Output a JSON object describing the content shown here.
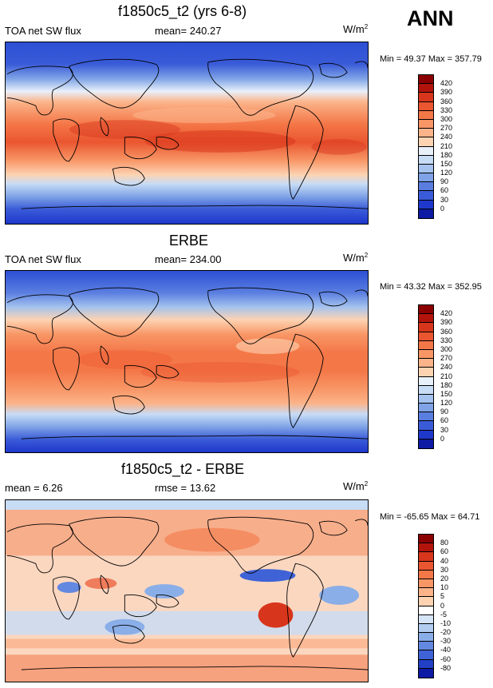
{
  "header": {
    "season": "ANN"
  },
  "panels": [
    {
      "title": "f1850c5_t2 (yrs 6-8)",
      "left_label": "TOA net SW flux",
      "center_label": "mean= 240.27",
      "unit_base": "W/m",
      "unit_exp": "2",
      "minmax": "Min =  49.37 Max = 357.79",
      "colorbar": {
        "labels": [
          "420",
          "390",
          "360",
          "330",
          "300",
          "270",
          "240",
          "210",
          "180",
          "150",
          "120",
          "90",
          "60",
          "30",
          "0"
        ],
        "colors": [
          "#8b0000",
          "#b2140c",
          "#d8361c",
          "#ea5630",
          "#f47748",
          "#f89666",
          "#fbb389",
          "#fdd3b2",
          "#e8f0fa",
          "#c7dcf5",
          "#a5c3ee",
          "#7fa3e6",
          "#5a7ee0",
          "#3a5bd8",
          "#1f38cc",
          "#0d1aa3"
        ]
      },
      "map": {
        "name": "model",
        "field": "toa_net_sw_model"
      }
    },
    {
      "title": "ERBE",
      "left_label": "TOA net SW flux",
      "center_label": "mean= 234.00",
      "unit_base": "W/m",
      "unit_exp": "2",
      "minmax": "Min =  43.32 Max = 352.95",
      "colorbar": {
        "labels": [
          "420",
          "390",
          "360",
          "330",
          "300",
          "270",
          "240",
          "210",
          "180",
          "150",
          "120",
          "90",
          "60",
          "30",
          "0"
        ],
        "colors": [
          "#8b0000",
          "#b2140c",
          "#d8361c",
          "#ea5630",
          "#f47748",
          "#f89666",
          "#fbb389",
          "#fdd3b2",
          "#e8f0fa",
          "#c7dcf5",
          "#a5c3ee",
          "#7fa3e6",
          "#5a7ee0",
          "#3a5bd8",
          "#1f38cc",
          "#0d1aa3"
        ]
      },
      "map": {
        "name": "obs",
        "field": "toa_net_sw_erbe"
      }
    },
    {
      "title": "f1850c5_t2 - ERBE",
      "left_label": "mean =   6.26",
      "center_label": "rmse =  13.62",
      "unit_base": "W/m",
      "unit_exp": "2",
      "minmax": "Min = -65.65 Max =  64.71",
      "colorbar": {
        "labels": [
          "80",
          "60",
          "40",
          "30",
          "20",
          "10",
          "5",
          "0",
          "-5",
          "-10",
          "-20",
          "-30",
          "-40",
          "-60",
          "-80"
        ],
        "colors": [
          "#8b0000",
          "#b2140c",
          "#d8361c",
          "#ea5630",
          "#f47748",
          "#f89666",
          "#fbb389",
          "#fdd3b2",
          "#ffffff",
          "#d5e4f7",
          "#b2cdf0",
          "#8aaee8",
          "#6388e0",
          "#3f62d6",
          "#2140c6",
          "#0d1aa3"
        ]
      },
      "map": {
        "name": "diff",
        "field": "toa_net_sw_diff"
      }
    }
  ]
}
